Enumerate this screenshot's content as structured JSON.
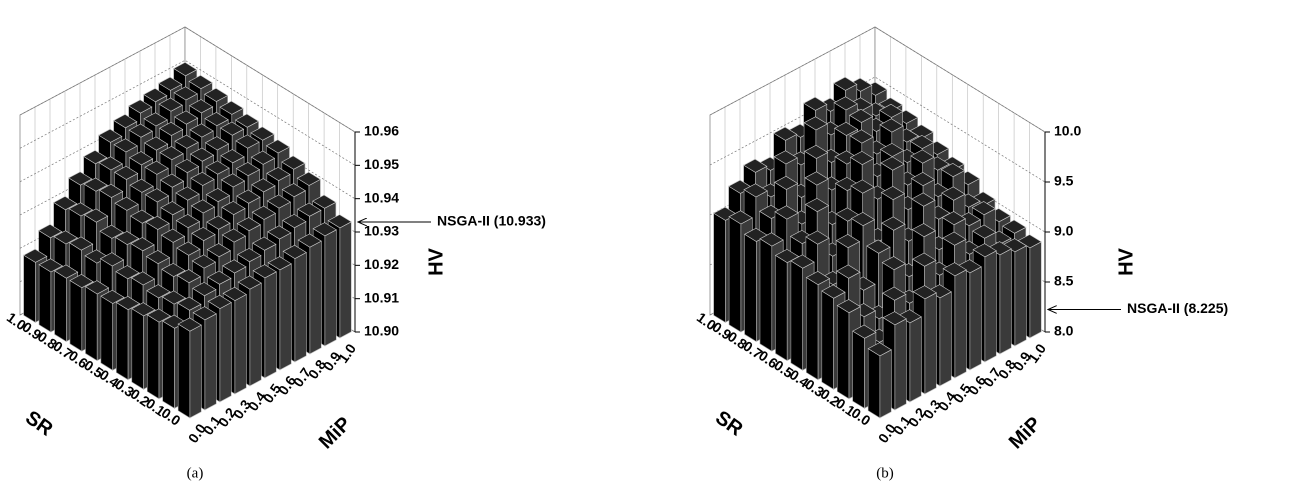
{
  "chart_data": [
    {
      "type": "bar3d",
      "caption": "(a)",
      "x_label": "SR",
      "y_label": "MiP",
      "z_label": "HV",
      "x_categories": [
        "0.0",
        "0.1",
        "0.2",
        "0.3",
        "0.4",
        "0.5",
        "0.6",
        "0.7",
        "0.8",
        "0.9",
        "1.0"
      ],
      "y_categories": [
        "0.0",
        "0.1",
        "0.2",
        "0.3",
        "0.4",
        "0.5",
        "0.6",
        "0.7",
        "0.8",
        "0.9",
        "1.0"
      ],
      "values": [
        [
          10.926,
          10.927,
          10.928,
          10.928,
          10.929,
          10.93,
          10.93,
          10.931,
          10.932,
          10.933,
          10.933
        ],
        [
          10.924,
          10.927,
          10.929,
          10.93,
          10.931,
          10.932,
          10.933,
          10.934,
          10.935,
          10.936,
          10.936
        ],
        [
          10.923,
          10.926,
          10.93,
          10.932,
          10.933,
          10.935,
          10.936,
          10.937,
          10.938,
          10.939,
          10.94
        ],
        [
          10.922,
          10.925,
          10.929,
          10.933,
          10.935,
          10.936,
          10.938,
          10.939,
          10.94,
          10.941,
          10.942
        ],
        [
          10.921,
          10.926,
          10.93,
          10.934,
          10.936,
          10.938,
          10.939,
          10.941,
          10.942,
          10.943,
          10.944
        ],
        [
          10.92,
          10.925,
          10.931,
          10.935,
          10.937,
          10.939,
          10.941,
          10.942,
          10.943,
          10.945,
          10.945
        ],
        [
          10.92,
          10.926,
          10.93,
          10.934,
          10.938,
          10.94,
          10.942,
          10.943,
          10.944,
          10.946,
          10.946
        ],
        [
          10.919,
          10.924,
          10.929,
          10.935,
          10.938,
          10.941,
          10.943,
          10.944,
          10.945,
          10.946,
          10.947
        ],
        [
          10.919,
          10.925,
          10.931,
          10.936,
          10.939,
          10.941,
          10.943,
          10.945,
          10.946,
          10.947,
          10.948
        ],
        [
          10.918,
          10.924,
          10.93,
          10.935,
          10.939,
          10.942,
          10.944,
          10.945,
          10.947,
          10.948,
          10.949
        ],
        [
          10.918,
          10.923,
          10.929,
          10.934,
          10.938,
          10.942,
          10.944,
          10.946,
          10.947,
          10.948,
          10.95
        ]
      ],
      "zlim": [
        10.9,
        10.96
      ],
      "zticks": [
        {
          "value": 10.9,
          "label": "10.90"
        },
        10.91,
        10.92,
        10.93,
        10.94,
        10.95,
        10.96
      ],
      "grid": true,
      "annotation": {
        "text": "NSGA-II (10.933)",
        "value": 10.933
      }
    },
    {
      "type": "bar3d",
      "caption": "(b)",
      "x_label": "SR",
      "y_label": "MiP",
      "z_label": "HV",
      "x_categories": [
        "0.0",
        "0.1",
        "0.2",
        "0.3",
        "0.4",
        "0.5",
        "0.6",
        "0.7",
        "0.8",
        "0.9",
        "1.0"
      ],
      "y_categories": [
        "0.0",
        "0.1",
        "0.2",
        "0.3",
        "0.4",
        "0.5",
        "0.6",
        "0.7",
        "0.8",
        "0.9",
        "1.0"
      ],
      "values": [
        [
          8.62,
          8.85,
          8.79,
          8.95,
          8.88,
          9.02,
          8.97,
          9.05,
          8.99,
          8.94,
          8.9
        ],
        [
          8.7,
          8.58,
          8.92,
          8.81,
          9.1,
          8.93,
          9.15,
          8.98,
          9.06,
          8.92,
          8.95
        ],
        [
          8.86,
          8.74,
          8.64,
          9.05,
          8.9,
          9.22,
          9.01,
          9.18,
          9.09,
          9.12,
          8.97
        ],
        [
          8.91,
          9.03,
          8.83,
          9.12,
          9.27,
          9.08,
          9.35,
          9.14,
          9.25,
          9.1,
          9.04
        ],
        [
          8.95,
          8.87,
          9.16,
          9.3,
          9.06,
          9.4,
          9.22,
          9.38,
          9.19,
          9.31,
          9.15
        ],
        [
          9.02,
          9.18,
          8.98,
          9.25,
          9.45,
          9.31,
          9.52,
          9.29,
          9.43,
          9.28,
          9.2
        ],
        [
          8.98,
          9.09,
          9.33,
          9.12,
          9.38,
          9.56,
          9.36,
          9.48,
          9.34,
          9.4,
          9.26
        ],
        [
          9.05,
          9.24,
          9.11,
          9.42,
          9.29,
          9.47,
          9.6,
          9.41,
          9.55,
          9.37,
          9.33
        ],
        [
          9.0,
          9.15,
          9.36,
          9.2,
          9.51,
          9.39,
          9.58,
          9.63,
          9.46,
          9.52,
          9.38
        ],
        [
          9.08,
          9.27,
          9.19,
          9.44,
          9.35,
          9.62,
          9.49,
          9.66,
          9.57,
          9.44,
          9.41
        ],
        [
          9.02,
          9.21,
          9.34,
          9.28,
          9.5,
          9.45,
          9.64,
          9.55,
          9.68,
          9.59,
          9.47
        ]
      ],
      "zlim": [
        8,
        10
      ],
      "zticks": [
        {
          "value": 8,
          "label": "8.0"
        },
        8.5,
        {
          "value": 9,
          "label": "9.0"
        },
        9.5,
        {
          "value": 10,
          "label": "10.0"
        }
      ],
      "grid": true,
      "annotation": {
        "text": "NSGA-II (8.225)",
        "value": 8.225
      }
    }
  ]
}
